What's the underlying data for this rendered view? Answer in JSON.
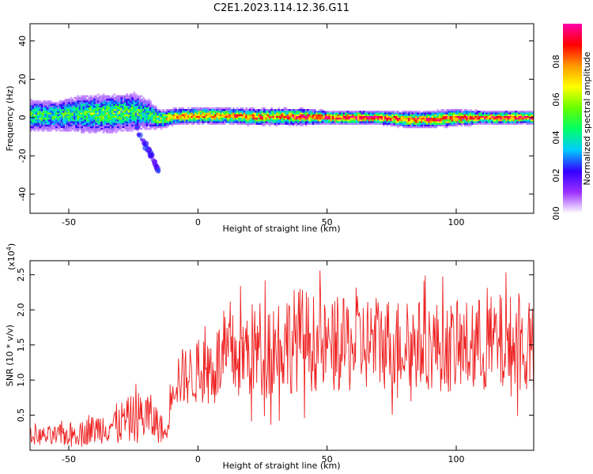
{
  "title": "C2E1.2023.114.12.36.G11",
  "chart_data": [
    {
      "type": "heatmap",
      "xlabel": "Height of straight line (km)",
      "ylabel": "Frequency (Hz)",
      "xlim": [
        -65,
        130
      ],
      "ylim": [
        -50,
        49
      ],
      "xticks": [
        -50,
        0,
        50,
        100
      ],
      "yticks": [
        -40,
        -20,
        0,
        20,
        40
      ],
      "colorbar": {
        "label": "Normalized spectral amplitude",
        "range": [
          0.0,
          1.0
        ],
        "ticks": [
          "0.0",
          "0.2",
          "0.4",
          "0.6",
          "0.8"
        ],
        "colors": [
          "#ffffff",
          "#9b30ff",
          "#3300ff",
          "#00ccff",
          "#00ff66",
          "#66ff00",
          "#ffff00",
          "#ff9900",
          "#ff0000",
          "#ff00aa"
        ]
      },
      "ridge": {
        "x": [
          -65,
          -55,
          -45,
          -35,
          -25,
          -20,
          -15,
          -10,
          0,
          10,
          20,
          30,
          40,
          50,
          60,
          70,
          80,
          90,
          100,
          110,
          120,
          130
        ],
        "y": [
          1,
          1,
          2,
          2,
          3,
          2,
          -1,
          0.5,
          1,
          1,
          0.5,
          0.5,
          0.5,
          0,
          0,
          0,
          -1,
          -1,
          0,
          0,
          0,
          0
        ],
        "spread": [
          5,
          5,
          6,
          6,
          6,
          5,
          3,
          2.5,
          2.5,
          2.5,
          2.5,
          2.5,
          2.5,
          2,
          2,
          2,
          2.5,
          2.5,
          2.5,
          2,
          2,
          2
        ],
        "peak": [
          0.5,
          0.45,
          0.5,
          0.55,
          0.5,
          0.45,
          0.6,
          0.7,
          0.75,
          0.75,
          0.8,
          0.8,
          0.85,
          0.85,
          0.9,
          0.9,
          0.8,
          0.8,
          0.85,
          0.85,
          0.85,
          0.85
        ]
      },
      "streak": {
        "x": [
          -24,
          -15
        ],
        "y": [
          -5,
          -28
        ]
      }
    },
    {
      "type": "line",
      "xlabel": "Height of straight line (km)",
      "ylabel": "SNR (10 * v/v)",
      "scale_label": "(x10^4)",
      "xlim": [
        -65,
        130
      ],
      "ylim": [
        0,
        27000
      ],
      "xticks": [
        -50,
        0,
        50,
        100
      ],
      "yticks": [
        5000,
        10000,
        15000,
        20000,
        25000
      ],
      "ytick_labels": [
        "0.5",
        "1.0",
        "1.5",
        "2.0",
        "2.5"
      ],
      "color": "#ee2222",
      "envelope": {
        "x": [
          -65,
          -55,
          -45,
          -35,
          -25,
          -20,
          -15,
          -12,
          -10,
          0,
          10,
          20,
          30,
          40,
          50,
          60,
          70,
          80,
          90,
          100,
          110,
          120,
          130
        ],
        "mean": [
          2000,
          2000,
          2500,
          3500,
          4500,
          5000,
          3500,
          2000,
          10000,
          11000,
          13000,
          14000,
          15000,
          16000,
          14500,
          15000,
          15500,
          15000,
          15000,
          14500,
          15000,
          15000,
          14500
        ],
        "amp": [
          1200,
          1500,
          1800,
          2500,
          3500,
          4000,
          2500,
          1000,
          4000,
          4500,
          6000,
          7000,
          7500,
          7500,
          6500,
          7000,
          7000,
          6500,
          6500,
          6500,
          7000,
          7500,
          6000
        ]
      }
    }
  ]
}
